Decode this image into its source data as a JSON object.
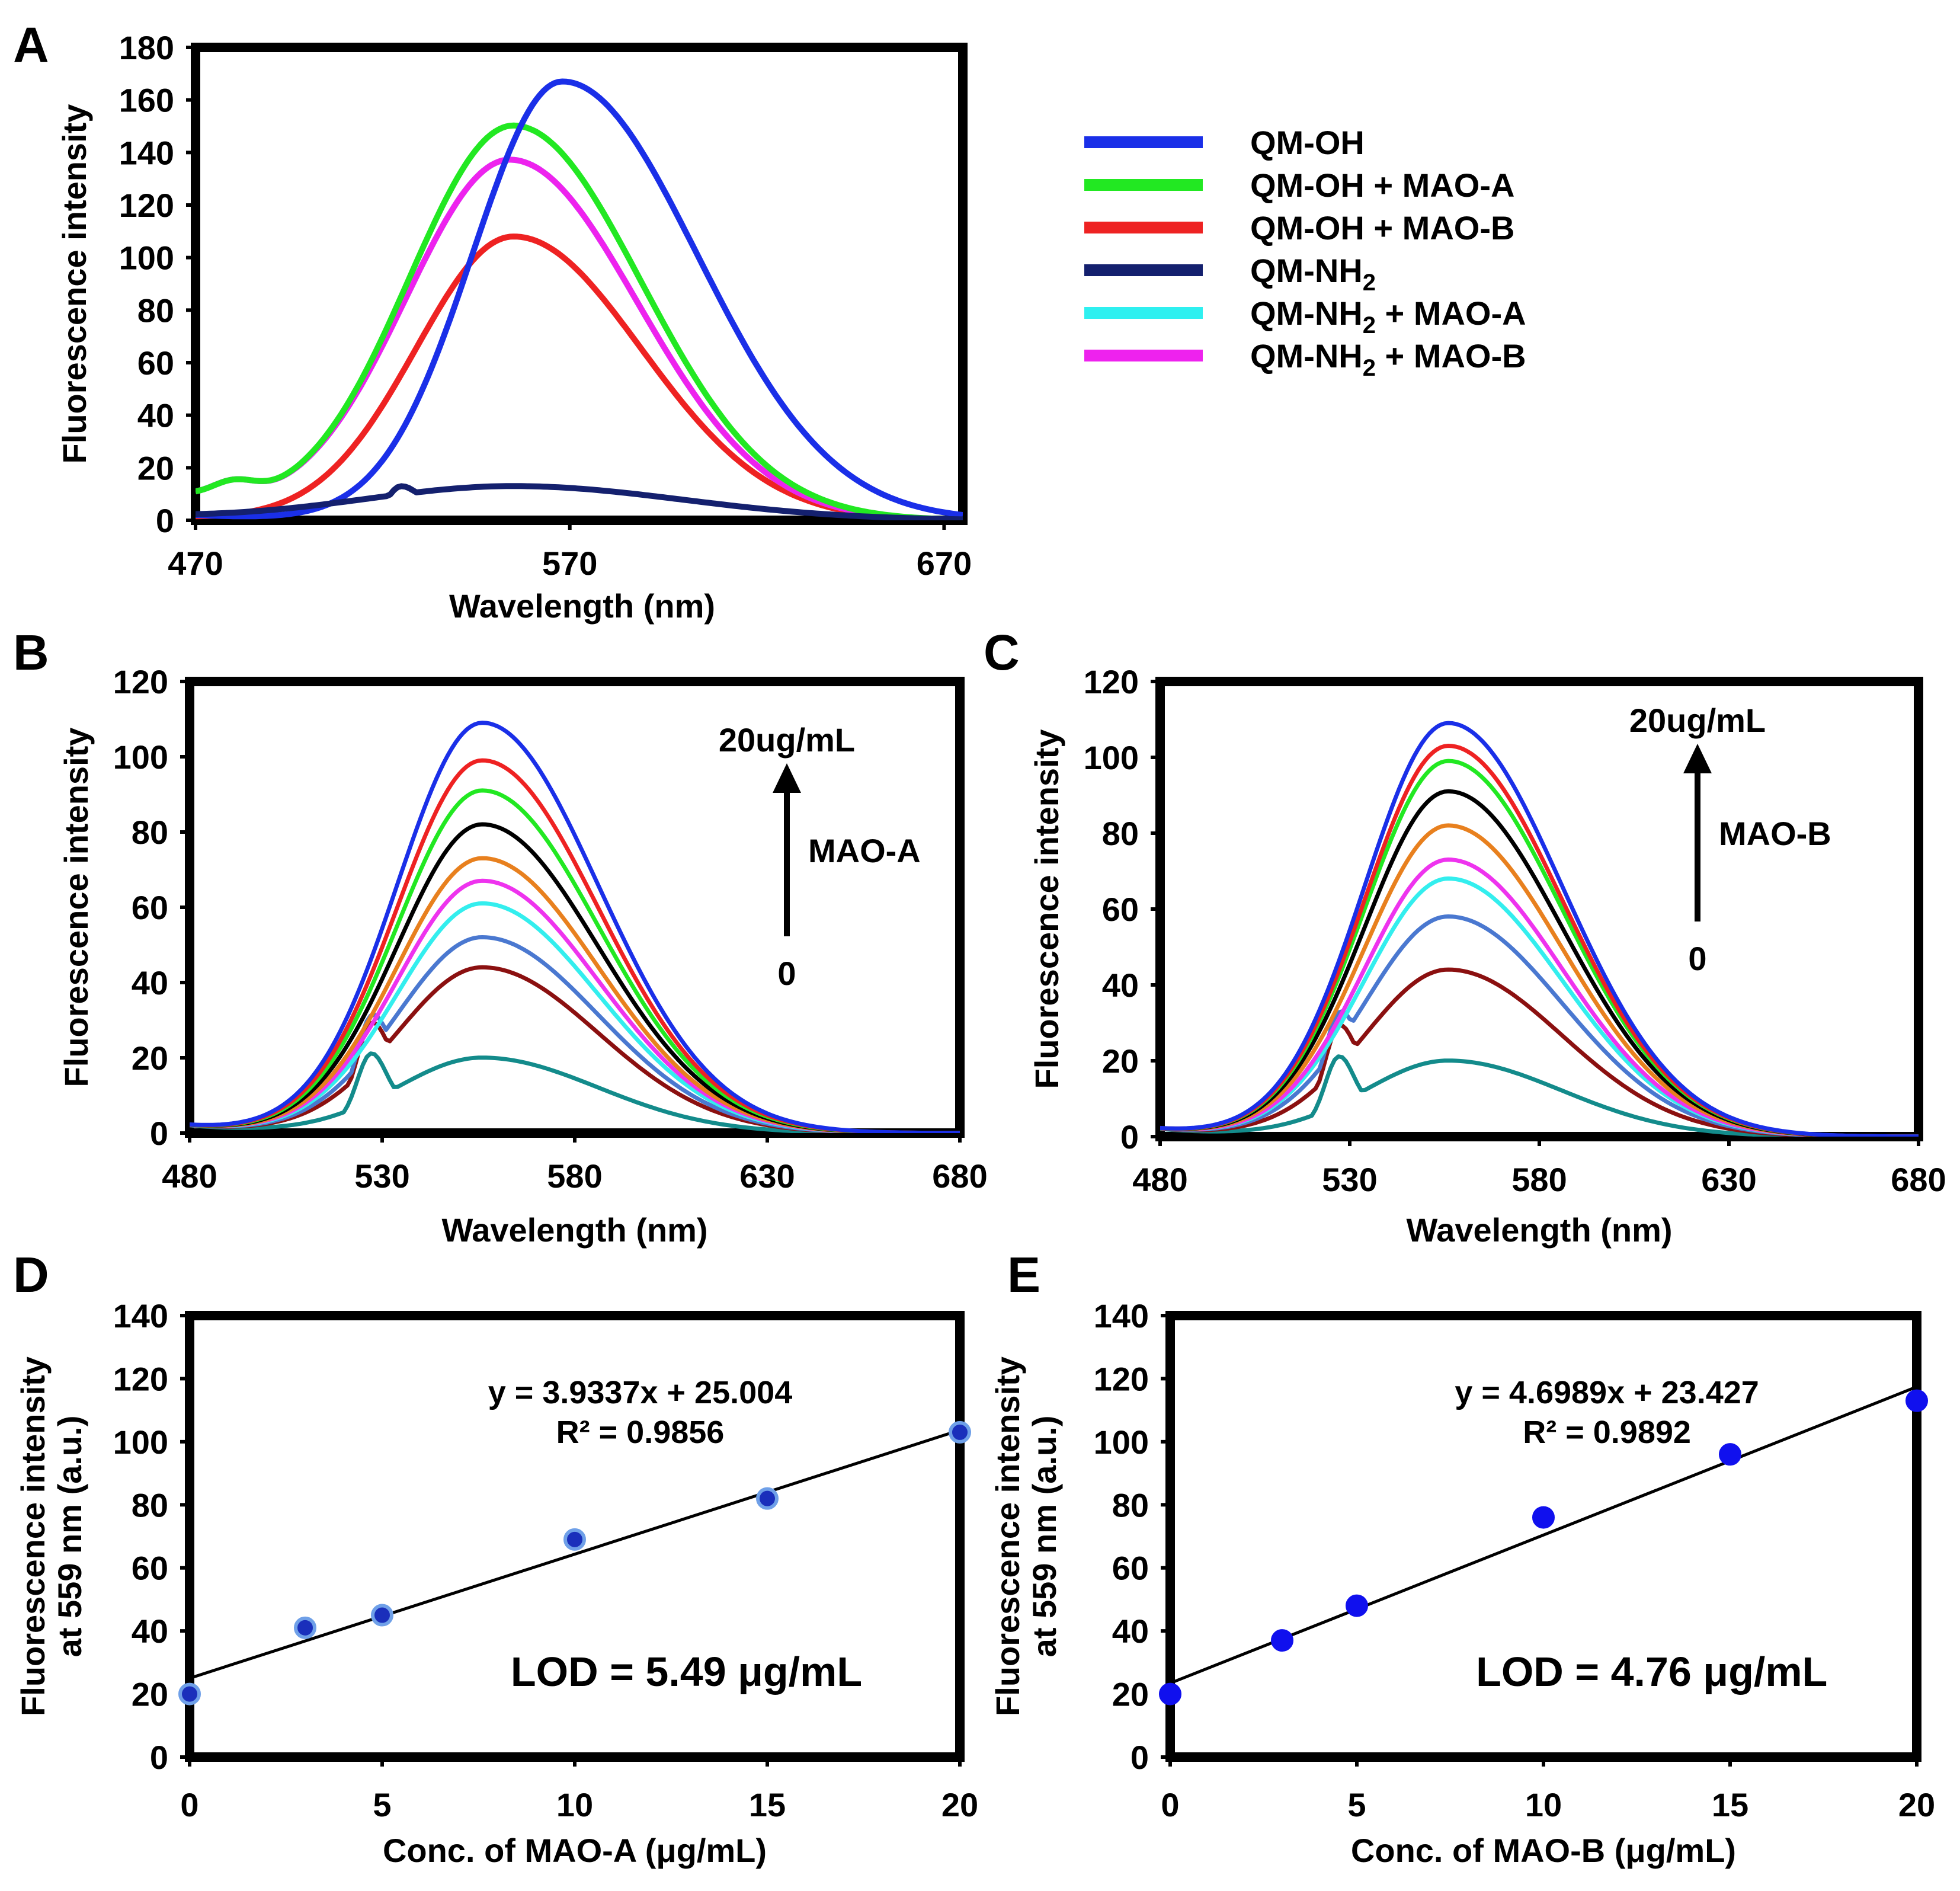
{
  "chart_data": [
    {
      "panel": "A",
      "type": "line",
      "xlabel": "Wavelength (nm)",
      "ylabel": "Fluorescence intensity",
      "xlim": [
        470,
        675
      ],
      "ylim": [
        0,
        180
      ],
      "xticks": [
        470,
        570,
        670
      ],
      "yticks": [
        0,
        20,
        40,
        60,
        80,
        100,
        120,
        140,
        160,
        180
      ],
      "legend_position": "right",
      "series": [
        {
          "name": "QM-OH",
          "label_main": "QM-OH",
          "label_sub": "",
          "label_tail": "",
          "color": "#1a2fe8",
          "peak_x": 568,
          "peak_y": 167,
          "width_left": 24,
          "width_right": 36,
          "baseline": 2
        },
        {
          "name": "QM-OH + MAO-A",
          "label_main": "QM-OH + MAO-A",
          "label_sub": "",
          "label_tail": "",
          "color": "#22e822",
          "peak_x": 555,
          "peak_y": 150,
          "width_left": 28,
          "width_right": 34,
          "baseline": 8
        },
        {
          "name": "QM-OH + MAO-B",
          "label_main": "QM-OH + MAO-B",
          "label_sub": "",
          "label_tail": "",
          "color": "#ee2222",
          "peak_x": 555,
          "peak_y": 108,
          "width_left": 26,
          "width_right": 34,
          "baseline": 1
        },
        {
          "name": "QM-NH2",
          "label_main": "QM-NH",
          "label_sub": "2",
          "label_tail": "",
          "color": "#14206e",
          "peak_x": 555,
          "peak_y": 13,
          "width_left": 40,
          "width_right": 45,
          "baseline": 1,
          "shoulder_x": 525,
          "shoulder_y": 13
        },
        {
          "name": "QM-NH2 + MAO-A",
          "label_main": "QM-NH",
          "label_sub": "2",
          "label_tail": " + MAO-A",
          "color": "#2ef0f0",
          "peak_x": 554,
          "peak_y": 137,
          "width_left": 28,
          "width_right": 34,
          "baseline": 8
        },
        {
          "name": "QM-NH2 + MAO-B",
          "label_main": "QM-NH",
          "label_sub": "2",
          "label_tail": " + MAO-B",
          "color": "#ee22ee",
          "peak_x": 554,
          "peak_y": 137,
          "width_left": 28,
          "width_right": 34,
          "baseline": 8
        }
      ]
    },
    {
      "panel": "B",
      "type": "line",
      "xlabel": "Wavelength (nm)",
      "ylabel": "Fluorescence intensity",
      "xlim": [
        480,
        680
      ],
      "ylim": [
        0,
        120
      ],
      "xticks": [
        480,
        530,
        580,
        630,
        680
      ],
      "yticks": [
        0,
        20,
        40,
        60,
        80,
        100,
        120
      ],
      "arrow_top_label": "20ug/mL",
      "arrow_side_label": "MAO-A",
      "arrow_bottom_label": "0",
      "series": [
        {
          "name": "0",
          "color": "#138b8b",
          "peak_y": 20
        },
        {
          "name": "1",
          "color": "#8b1010",
          "peak_y": 44
        },
        {
          "name": "2",
          "color": "#4a78d0",
          "peak_y": 52
        },
        {
          "name": "3",
          "color": "#33eeee",
          "peak_y": 61
        },
        {
          "name": "4",
          "color": "#ee33ee",
          "peak_y": 67
        },
        {
          "name": "5",
          "color": "#e8801e",
          "peak_y": 73
        },
        {
          "name": "6",
          "color": "#000000",
          "peak_y": 82
        },
        {
          "name": "7",
          "color": "#22e822",
          "peak_y": 91
        },
        {
          "name": "8",
          "color": "#ee2222",
          "peak_y": 99
        },
        {
          "name": "9",
          "color": "#1a2fe8",
          "peak_y": 109
        }
      ]
    },
    {
      "panel": "C",
      "type": "line",
      "xlabel": "Wavelength (nm)",
      "ylabel": "Fluorescence intensity",
      "xlim": [
        480,
        680
      ],
      "ylim": [
        0,
        120
      ],
      "xticks": [
        480,
        530,
        580,
        630,
        680
      ],
      "yticks": [
        0,
        20,
        40,
        60,
        80,
        100,
        120
      ],
      "arrow_top_label": "20ug/mL",
      "arrow_side_label": "MAO-B",
      "arrow_bottom_label": "0",
      "series": [
        {
          "name": "0",
          "color": "#138b8b",
          "peak_y": 20
        },
        {
          "name": "1",
          "color": "#8b1010",
          "peak_y": 44
        },
        {
          "name": "2",
          "color": "#4a78d0",
          "peak_y": 58
        },
        {
          "name": "3",
          "color": "#33eeee",
          "peak_y": 68
        },
        {
          "name": "4",
          "color": "#ee33ee",
          "peak_y": 73
        },
        {
          "name": "5",
          "color": "#e8801e",
          "peak_y": 82
        },
        {
          "name": "6",
          "color": "#000000",
          "peak_y": 91
        },
        {
          "name": "7",
          "color": "#22e822",
          "peak_y": 99
        },
        {
          "name": "8",
          "color": "#ee2222",
          "peak_y": 103
        },
        {
          "name": "9",
          "color": "#1a2fe8",
          "peak_y": 109
        }
      ]
    },
    {
      "panel": "D",
      "type": "scatter",
      "xlabel": "Conc. of MAO-A (μg/mL)",
      "ylabel_line1": "Fluorescence intensity",
      "ylabel_line2": "at 559 nm (a.u.)",
      "xlim": [
        0,
        20
      ],
      "ylim": [
        0,
        140
      ],
      "xticks": [
        0,
        5,
        10,
        15,
        20
      ],
      "yticks": [
        0,
        20,
        40,
        60,
        80,
        100,
        120,
        140
      ],
      "x": [
        0,
        3,
        5,
        10,
        15,
        20
      ],
      "y": [
        20,
        41,
        45,
        69,
        82,
        103
      ],
      "point_color": "#1a2fbb",
      "point_edge": "#6fa0e8",
      "fit": {
        "slope": 3.9337,
        "intercept": 25.004
      },
      "equation": "y = 3.9337x + 25.004",
      "r2": "R² = 0.9856",
      "lod": "LOD = 5.49 μg/mL"
    },
    {
      "panel": "E",
      "type": "scatter",
      "xlabel": "Conc. of MAO-B (μg/mL)",
      "ylabel_line1": "Fluorescence intensity",
      "ylabel_line2": "at 559 nm (a.u.)",
      "xlim": [
        0,
        20
      ],
      "ylim": [
        0,
        140
      ],
      "xticks": [
        0,
        5,
        10,
        15,
        20
      ],
      "yticks": [
        0,
        20,
        40,
        60,
        80,
        100,
        120,
        140
      ],
      "x": [
        0,
        3,
        5,
        10,
        15,
        20
      ],
      "y": [
        20,
        37,
        48,
        76,
        96,
        113
      ],
      "point_color": "#1010ee",
      "point_edge": "#1010ee",
      "fit": {
        "slope": 4.6989,
        "intercept": 23.427
      },
      "equation": "y = 4.6989x + 23.427",
      "r2": "R² = 0.9892",
      "lod": "LOD = 4.76 μg/mL"
    }
  ]
}
